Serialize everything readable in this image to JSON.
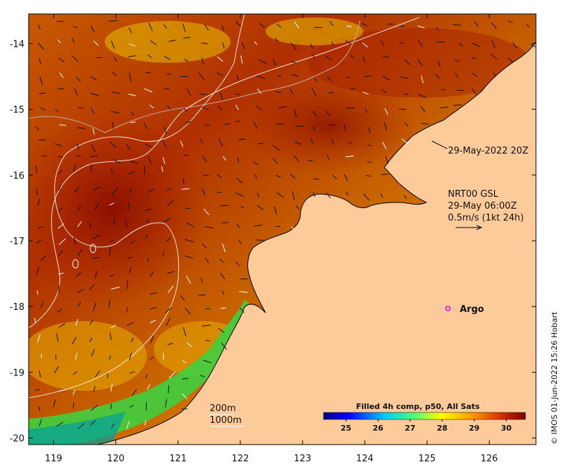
{
  "map": {
    "lon_range": [
      118.6,
      126.75
    ],
    "lat_range": [
      -20.1,
      -13.55
    ],
    "lon_ticks": [
      "119",
      "120",
      "121",
      "122",
      "123",
      "124",
      "125",
      "126"
    ],
    "lat_ticks": [
      "-14",
      "-15",
      "-16",
      "-17",
      "-18",
      "-19",
      "-20"
    ],
    "land_color": "#fccb99",
    "frame_color": "#000000"
  },
  "annotations": {
    "pass_time": "29-May-2022 20Z",
    "current_product": "NRT00 GSL",
    "current_time": "29-May 06:00Z",
    "current_scale": "0.5m/s (1kt 24h)",
    "isobath_1": "200m",
    "isobath_2": "1000m",
    "argo_label": "Argo",
    "argo_color": "#e800e8",
    "credit": "© IMOS 01-Jun-2022 15:26 Hobart"
  },
  "legend": {
    "title": "Filled 4h comp, p50, All Sats",
    "ticks": [
      "25",
      "26",
      "27",
      "28",
      "29",
      "30"
    ],
    "range": [
      24.3,
      30.6
    ],
    "colors": [
      "#00007f",
      "#0000ff",
      "#007fff",
      "#00ffff",
      "#7fff7f",
      "#ffff00",
      "#ff7f00",
      "#ff0000",
      "#7f0000"
    ]
  }
}
